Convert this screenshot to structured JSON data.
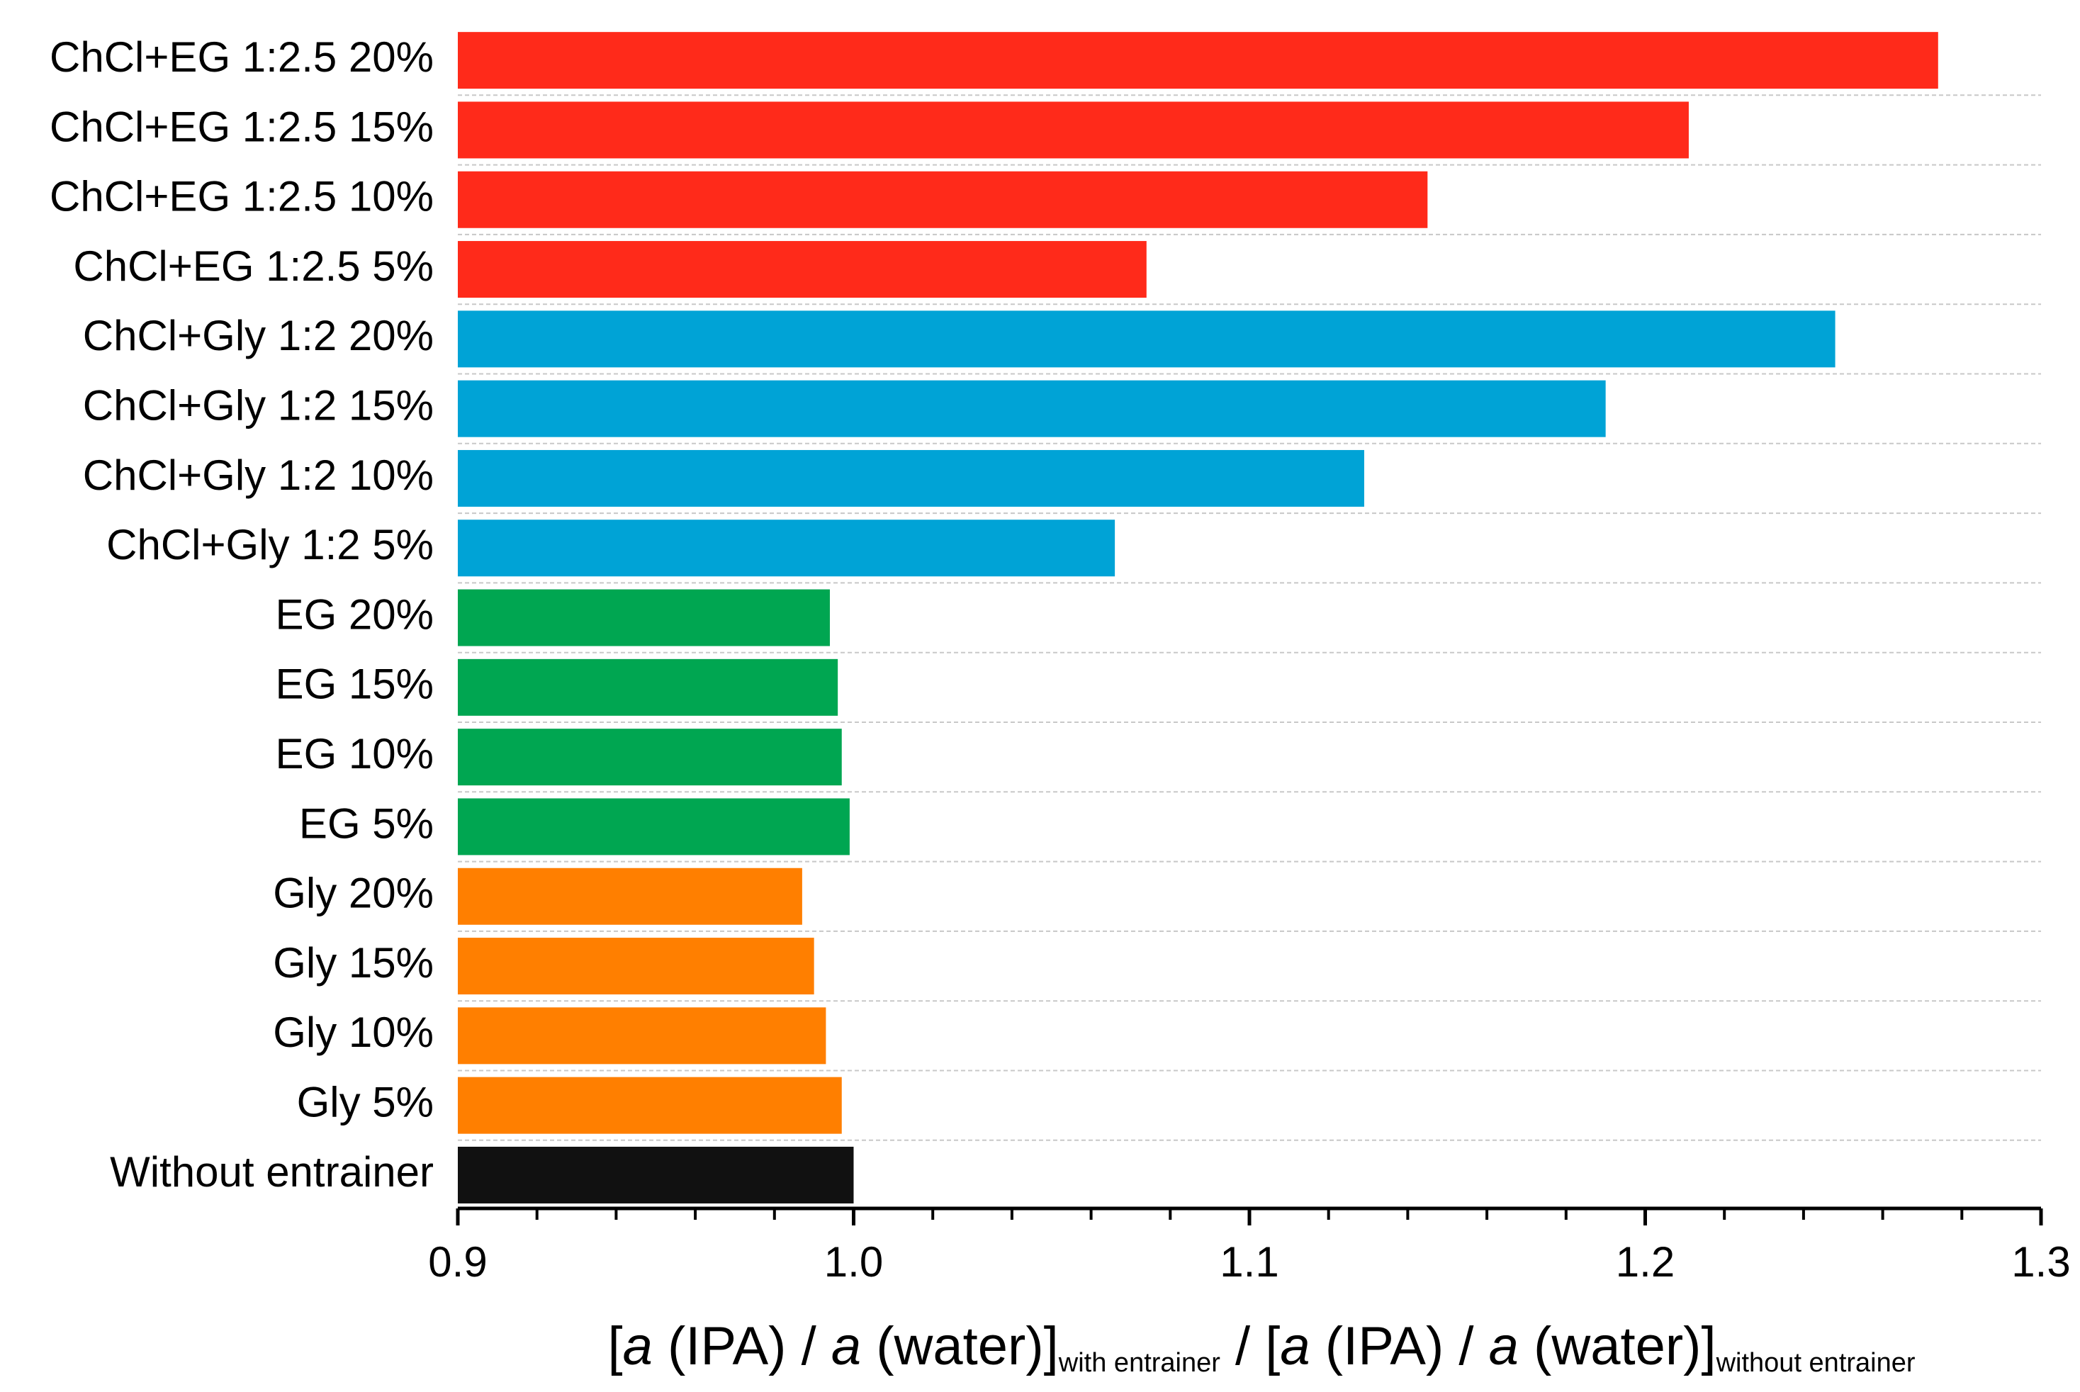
{
  "chart_data": {
    "type": "bar",
    "orientation": "horizontal",
    "categories": [
      "ChCl+EG 1:2.5 20%",
      "ChCl+EG 1:2.5 15%",
      "ChCl+EG 1:2.5 10%",
      "ChCl+EG 1:2.5 5%",
      "ChCl+Gly 1:2 20%",
      "ChCl+Gly 1:2 15%",
      "ChCl+Gly 1:2 10%",
      "ChCl+Gly 1:2 5%",
      "EG 20%",
      "EG 15%",
      "EG 10%",
      "EG 5%",
      "Gly 20%",
      "Gly 15%",
      "Gly 10%",
      "Gly 5%",
      "Without entrainer"
    ],
    "values": [
      1.274,
      1.211,
      1.145,
      1.074,
      1.248,
      1.19,
      1.129,
      1.066,
      0.994,
      0.996,
      0.997,
      0.999,
      0.987,
      0.99,
      0.993,
      0.997,
      1.0
    ],
    "colors": [
      "#ff2a1a",
      "#ff2a1a",
      "#ff2a1a",
      "#ff2a1a",
      "#00a3d6",
      "#00a3d6",
      "#00a3d6",
      "#00a3d6",
      "#00a651",
      "#00a651",
      "#00a651",
      "#00a651",
      "#ff7f00",
      "#ff7f00",
      "#ff7f00",
      "#ff7f00",
      "#111111"
    ],
    "xlim": [
      0.9,
      1.3
    ],
    "xticks": [
      {
        "value": 0.9,
        "label": "0.9"
      },
      {
        "value": 1.0,
        "label": "1.0"
      },
      {
        "value": 1.1,
        "label": "1.1"
      },
      {
        "value": 1.2,
        "label": "1.2"
      },
      {
        "value": 1.3,
        "label": "1.3"
      }
    ],
    "xticks_minor": [
      0.92,
      0.94,
      0.96,
      0.98,
      1.02,
      1.04,
      1.06,
      1.08,
      1.12,
      1.14,
      1.16,
      1.18,
      1.22,
      1.24,
      1.26,
      1.28
    ],
    "xlabel": [
      {
        "text": "[",
        "style": "normal"
      },
      {
        "text": "a",
        "style": "italic"
      },
      {
        "text": " (IPA) / ",
        "style": "normal"
      },
      {
        "text": "a",
        "style": "italic"
      },
      {
        "text": " (water)]",
        "style": "normal"
      },
      {
        "text": "with entrainer",
        "style": "sub"
      },
      {
        "text": " / [",
        "style": "normal"
      },
      {
        "text": "a",
        "style": "italic"
      },
      {
        "text": " (IPA) / ",
        "style": "normal"
      },
      {
        "text": "a",
        "style": "italic"
      },
      {
        "text": " (water)]",
        "style": "normal"
      },
      {
        "text": "without entrainer",
        "style": "sub"
      }
    ]
  }
}
